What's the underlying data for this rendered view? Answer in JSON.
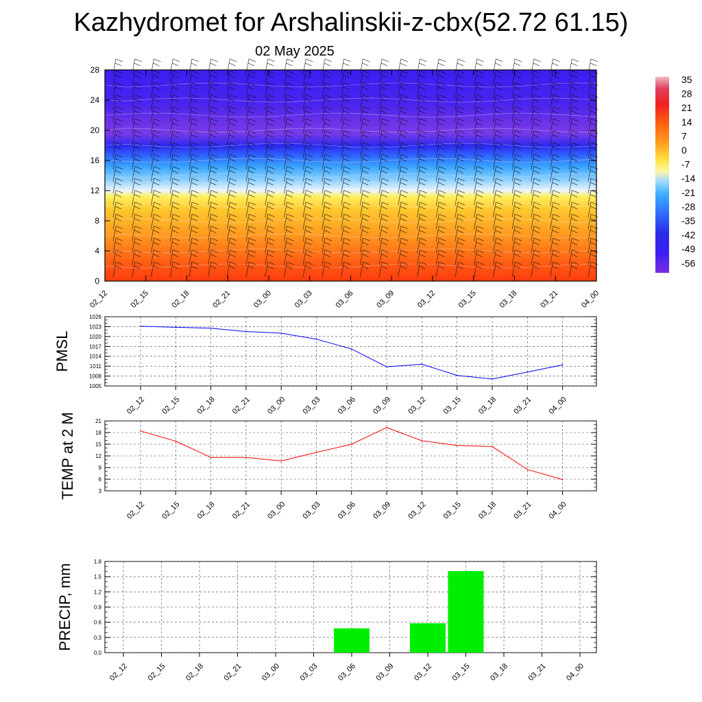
{
  "title": "Kazhydromet for Arshalinskii-z-cbx(52.72 61.15)",
  "subtitle": "02 May 2025",
  "colors": {
    "pmsl_line": "#0000ff",
    "temp_line": "#ff0000",
    "precip_bar": "#00ee00"
  },
  "chart_data": [
    {
      "type": "heatmap",
      "name": "upper-air-cross-section",
      "x_categories": [
        "02_12",
        "02_15",
        "02_18",
        "02_21",
        "03_00",
        "03_03",
        "03_06",
        "03_09",
        "03_12",
        "03_15",
        "03_18",
        "03_21",
        "04_00"
      ],
      "y_ticks": [
        0,
        4,
        8,
        12,
        16,
        20,
        24,
        28
      ],
      "ylim": [
        0,
        28
      ],
      "colorbar_labels": [
        "35",
        "28",
        "21",
        "14",
        "7",
        "0",
        "-7",
        "-14",
        "-21",
        "-28",
        "-35",
        "-42",
        "-49",
        "-56"
      ],
      "colorbar_range": [
        -63,
        42
      ],
      "overlay": "wind barbs"
    },
    {
      "type": "line",
      "name": "pmsl",
      "ylabel": "PMSL",
      "categories": [
        "02_12",
        "02_15",
        "02_18",
        "02_21",
        "03_00",
        "03_03",
        "03_06",
        "03_09",
        "03_12",
        "03_15",
        "03_18",
        "03_21",
        "04_00"
      ],
      "values": [
        1023.1,
        1022.8,
        1022.5,
        1021.5,
        1021.0,
        1019.2,
        1016.2,
        1010.8,
        1011.6,
        1008.2,
        1007.1,
        1009.2,
        1011.4
      ],
      "y_ticks": [
        1005,
        1008,
        1011,
        1014,
        1017,
        1020,
        1023,
        1026
      ],
      "ylim": [
        1005,
        1026
      ]
    },
    {
      "type": "line",
      "name": "temp-2m",
      "ylabel": "TEMP at 2 M",
      "categories": [
        "02_12",
        "02_15",
        "02_18",
        "02_21",
        "03_00",
        "03_03",
        "03_06",
        "03_09",
        "03_12",
        "03_15",
        "03_18",
        "03_21",
        "04_00"
      ],
      "values": [
        18.4,
        15.8,
        11.6,
        11.6,
        10.7,
        12.9,
        15.0,
        19.3,
        15.9,
        14.7,
        14.4,
        8.5,
        5.9
      ],
      "y_ticks": [
        3,
        6,
        9,
        12,
        15,
        18,
        21
      ],
      "ylim": [
        3,
        21
      ]
    },
    {
      "type": "bar",
      "name": "precipitation",
      "ylabel": "PRECIP, mm",
      "categories": [
        "02_12",
        "02_15",
        "02_18",
        "02_21",
        "03_00",
        "03_03",
        "03_06",
        "03_09",
        "03_12",
        "03_15",
        "03_18",
        "03_21",
        "04_00"
      ],
      "values": [
        0,
        0,
        0,
        0,
        0,
        0,
        0.48,
        0,
        0.58,
        1.61,
        0,
        0,
        0
      ],
      "y_ticks": [
        "0.0",
        "0.3",
        "0.6",
        "0.9",
        "1.2",
        "1.5",
        "1.8"
      ],
      "ylim": [
        0,
        1.8
      ]
    }
  ]
}
